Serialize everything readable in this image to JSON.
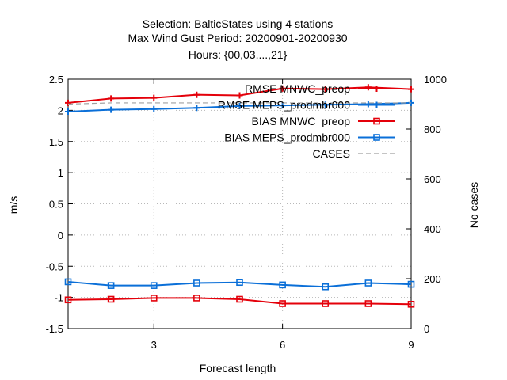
{
  "title_lines": [
    "Selection: BalticStates using     4 stations",
    "Max Wind Gust   Period: 20200901-20200930",
    "Hours: {00,03,...,21}"
  ],
  "chart_data": {
    "type": "line",
    "xlabel": "Forecast length",
    "ylabel": "m/s",
    "y2label": "No cases",
    "xlim": [
      1,
      9
    ],
    "ylim": [
      -1.5,
      2.5
    ],
    "y2lim": [
      0,
      1000
    ],
    "xticks": [
      "3",
      "6",
      "9"
    ],
    "yticks": [
      "2.5",
      "2",
      "1.5",
      "1",
      "0.5",
      "0",
      "-0.5",
      "-1",
      "-1.5"
    ],
    "y2ticks": [
      "1000",
      "800",
      "600",
      "400",
      "200",
      "0"
    ],
    "grid": true,
    "legend_position": "top-right",
    "x": [
      1,
      2,
      3,
      4,
      5,
      6,
      7,
      8,
      9
    ],
    "series": [
      {
        "name": "RMSE MNWC_preop",
        "color": "#e4000a",
        "marker": "plus",
        "values": [
          2.12,
          2.19,
          2.2,
          2.25,
          2.24,
          2.35,
          2.34,
          2.37,
          2.34
        ]
      },
      {
        "name": "RMSE MEPS_prodmbr000",
        "color": "#0a6fd8",
        "marker": "plus",
        "values": [
          1.98,
          2.01,
          2.02,
          2.04,
          2.07,
          2.08,
          2.09,
          2.1,
          2.12
        ]
      },
      {
        "name": "BIAS MNWC_preop",
        "color": "#e4000a",
        "marker": "square",
        "values": [
          -1.04,
          -1.03,
          -1.01,
          -1.01,
          -1.03,
          -1.1,
          -1.1,
          -1.1,
          -1.11
        ]
      },
      {
        "name": "BIAS MEPS_prodmbr000",
        "color": "#0a6fd8",
        "marker": "square",
        "values": [
          -0.75,
          -0.81,
          -0.81,
          -0.77,
          -0.76,
          -0.8,
          -0.83,
          -0.77,
          -0.79
        ]
      },
      {
        "name": "CASES",
        "color": "#a0a0a0",
        "marker": "none",
        "axis": "y2",
        "values": [
          900,
          905,
          905,
          905,
          905,
          905,
          905,
          905,
          905
        ]
      }
    ]
  }
}
